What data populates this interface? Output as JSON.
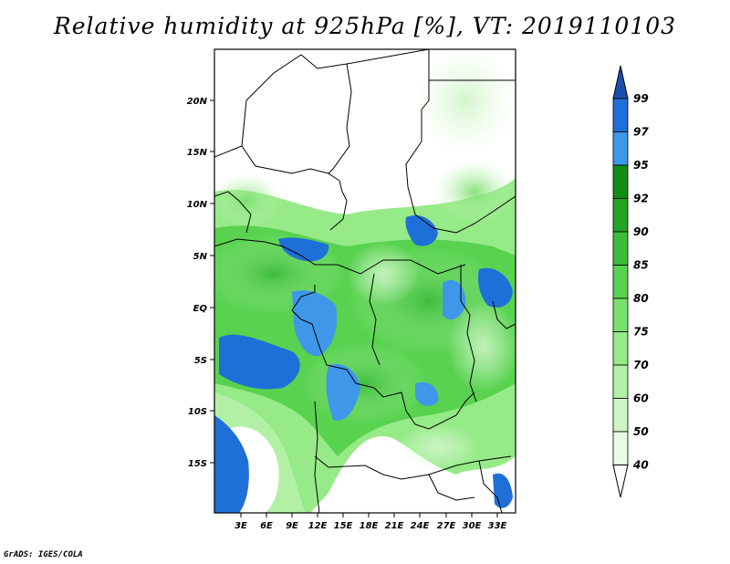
{
  "title": "Relative humidity at 925hPa [%], VT: 2019110103",
  "credit": "GrADS: IGES/COLA",
  "map": {
    "lat_labels": [
      "20N",
      "15N",
      "10N",
      "5N",
      "EQ",
      "5S",
      "10S",
      "15S"
    ],
    "lon_labels": [
      "3E",
      "6E",
      "9E",
      "12E",
      "15E",
      "18E",
      "21E",
      "24E",
      "27E",
      "30E",
      "33E"
    ]
  },
  "colorbar": {
    "levels": [
      "40",
      "50",
      "60",
      "70",
      "75",
      "80",
      "85",
      "90",
      "92",
      "95",
      "97",
      "99"
    ],
    "colors": [
      "#ffffff",
      "#e8fbe3",
      "#cdf5c4",
      "#b2f0a6",
      "#96ea88",
      "#78e06b",
      "#58d24f",
      "#3cbc3a",
      "#24a424",
      "#148c14",
      "#3f97ea",
      "#1f6fd8",
      "#1a4fb0"
    ]
  }
}
